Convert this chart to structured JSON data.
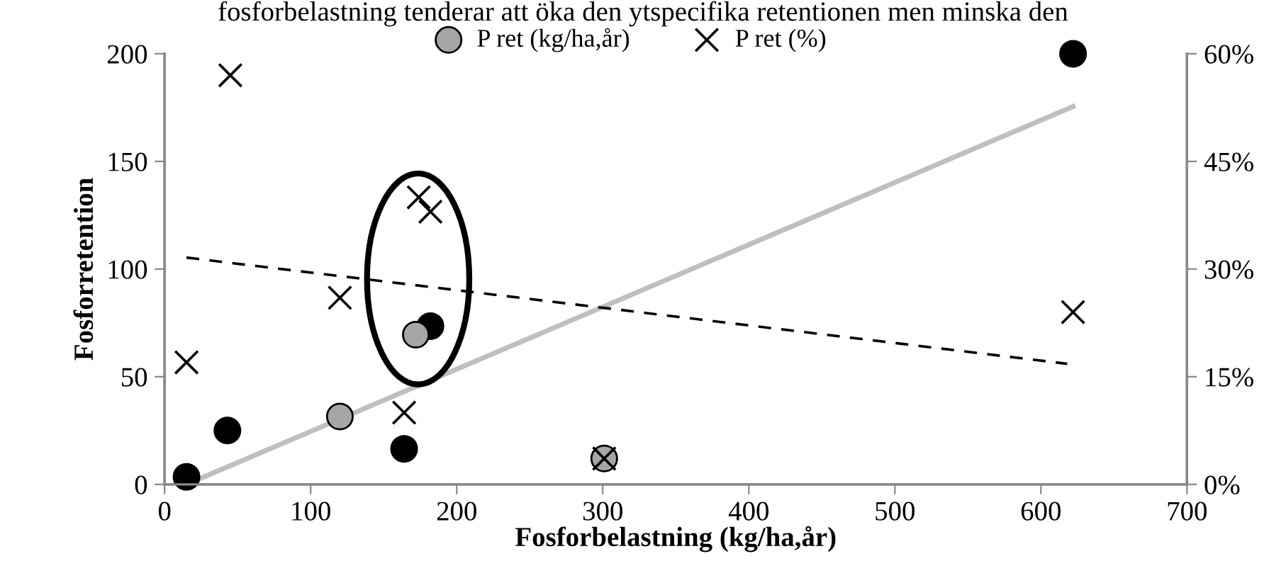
{
  "chart_data": {
    "type": "scatter",
    "title": "fosforbelastning tenderar att öka den ytspecifika retentionen men minska den",
    "xlabel": "Fosforbelastning (kg/ha,år)",
    "ylabel": "Fosforretention",
    "xlim": [
      0,
      700
    ],
    "xticks": [
      0,
      100,
      200,
      300,
      400,
      500,
      600,
      700
    ],
    "ylim": [
      0,
      200
    ],
    "yticks": [
      0,
      50,
      100,
      150,
      200
    ],
    "y2lim": [
      0,
      60
    ],
    "y2ticks": [
      {
        "value": 0,
        "label": "0%"
      },
      {
        "value": 15,
        "label": "15%"
      },
      {
        "value": 30,
        "label": "30%"
      },
      {
        "value": 45,
        "label": "45%"
      },
      {
        "value": 60,
        "label": "60%"
      }
    ],
    "legend": "top",
    "grid": false,
    "series": [
      {
        "marker": "circle",
        "color": "#000000",
        "x": [
          15,
          43,
          164,
          182,
          622
        ],
        "values": [
          3.5,
          25,
          16.5,
          73.5,
          200
        ]
      },
      {
        "marker": "circle",
        "name": "P ret (kg/ha,år)",
        "color": "#a6a6a6",
        "x": [
          120,
          172,
          301
        ],
        "values": [
          31.5,
          69.5,
          12
        ]
      },
      {
        "marker": "cross",
        "name": "P ret (%)",
        "color": "#000000",
        "axis": "y2",
        "x": [
          15,
          45,
          120,
          164,
          174,
          182,
          301,
          622
        ],
        "values": [
          17,
          57,
          26,
          10,
          40,
          38,
          3.6,
          24
        ]
      },
      {
        "type": "line",
        "line_style": "solid",
        "color": "#bfbfbf",
        "x": [
          15,
          622
        ],
        "values": [
          0,
          175.5
        ]
      },
      {
        "type": "line",
        "line_style": "dashed",
        "color": "#000000",
        "axis": "y2",
        "x": [
          15,
          618
        ],
        "values": [
          31.6,
          16.8
        ]
      }
    ]
  }
}
